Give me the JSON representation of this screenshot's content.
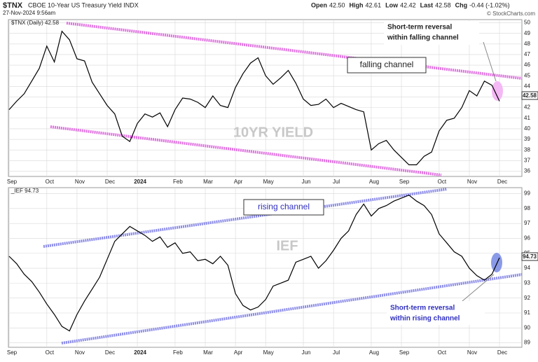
{
  "header": {
    "symbol": "$TNX",
    "name": "CBOE 10-Year US Treasury Yield INDX",
    "date": "27-Nov-2024 9:56am",
    "quote": [
      [
        "Open",
        "42.50"
      ],
      [
        "High",
        "42.61"
      ],
      [
        "Low",
        "42.42"
      ],
      [
        "Last",
        "42.58"
      ],
      [
        "Chg",
        "-0.44 (-1.02%)"
      ]
    ],
    "credit": "© StockCharts.com"
  },
  "chart_data": [
    {
      "type": "line",
      "watermark": "10YR YIELD",
      "last_label": "42.58",
      "channel_label": "falling channel",
      "reversal_label": [
        "Short-term reversal",
        "within falling channel"
      ],
      "categories": [
        "Sep",
        null,
        null,
        null,
        null,
        "Oct",
        null,
        null,
        null,
        "Nov",
        null,
        null,
        null,
        "Dec",
        null,
        null,
        null,
        "2024",
        null,
        null,
        null,
        null,
        "Feb",
        null,
        null,
        null,
        "Mar",
        null,
        null,
        null,
        "Apr",
        null,
        null,
        null,
        "May",
        null,
        null,
        null,
        null,
        "Jun",
        null,
        null,
        null,
        "Jul",
        null,
        null,
        null,
        null,
        "Aug",
        null,
        null,
        null,
        "Sep",
        null,
        null,
        null,
        null,
        "Oct",
        null,
        null,
        null,
        "Nov",
        null,
        null,
        null,
        "Dec"
      ],
      "series": [
        {
          "name": "$TNX (Daily) 42.58",
          "color": "#000000",
          "values": [
            41.8,
            42.6,
            43.3,
            44.5,
            45.7,
            47.8,
            46.3,
            49.2,
            48.4,
            46.6,
            46.4,
            44.4,
            43.3,
            42.2,
            41.4,
            39.3,
            38.8,
            40.5,
            41.4,
            41.1,
            41.5,
            40.2,
            41.8,
            42.9,
            42.8,
            42.5,
            42.0,
            43.1,
            42.2,
            42.0,
            43.9,
            45.2,
            46.2,
            46.7,
            45.0,
            44.2,
            44.8,
            45.5,
            44.3,
            42.8,
            42.2,
            42.3,
            42.8,
            42.0,
            42.4,
            42.1,
            41.8,
            41.6,
            38.0,
            38.6,
            38.9,
            38.0,
            37.3,
            36.6,
            36.6,
            37.4,
            37.8,
            39.8,
            40.8,
            41.0,
            42.0,
            43.6,
            43.1,
            44.5,
            44.1,
            42.6
          ]
        }
      ],
      "ylim": [
        35.5,
        50.3
      ],
      "yticks": [
        36,
        37,
        38,
        39,
        40,
        41,
        42,
        43,
        44,
        45,
        46,
        47,
        48,
        49,
        50
      ],
      "grid": true
    },
    {
      "type": "line",
      "watermark": "IEF",
      "last_label": "94.73",
      "channel_label": "rising channel",
      "reversal_label": [
        "Short-term reversal",
        "within rising channel"
      ],
      "categories": [
        "Sep",
        null,
        null,
        null,
        null,
        "Oct",
        null,
        null,
        null,
        "Nov",
        null,
        null,
        null,
        "Dec",
        null,
        null,
        null,
        "2024",
        null,
        null,
        null,
        null,
        "Feb",
        null,
        null,
        null,
        "Mar",
        null,
        null,
        null,
        "Apr",
        null,
        null,
        null,
        "May",
        null,
        null,
        null,
        null,
        "Jun",
        null,
        null,
        null,
        "Jul",
        null,
        null,
        null,
        null,
        "Aug",
        null,
        null,
        null,
        "Sep",
        null,
        null,
        null,
        null,
        "Oct",
        null,
        null,
        null,
        "Nov",
        null,
        null,
        null,
        "Dec"
      ],
      "series": [
        {
          "name": "_IEF 94.73",
          "color": "#000000",
          "values": [
            94.8,
            94.3,
            93.6,
            93.1,
            92.4,
            91.6,
            90.9,
            90.1,
            89.8,
            90.9,
            91.8,
            92.6,
            93.4,
            94.6,
            95.8,
            96.3,
            96.8,
            96.5,
            96.2,
            95.8,
            96.1,
            95.4,
            95.7,
            95.0,
            95.1,
            94.5,
            94.6,
            94.3,
            94.8,
            94.2,
            92.3,
            91.5,
            91.2,
            91.4,
            91.9,
            92.8,
            93.0,
            93.2,
            94.4,
            94.6,
            94.8,
            94.0,
            94.5,
            95.2,
            96.0,
            96.5,
            97.6,
            98.3,
            97.5,
            98.0,
            98.2,
            98.5,
            98.7,
            98.9,
            98.5,
            98.2,
            97.6,
            96.3,
            95.7,
            95.1,
            94.8,
            94.0,
            93.5,
            93.2,
            93.6,
            94.7
          ]
        }
      ],
      "ylim": [
        88.7,
        99.4
      ],
      "yticks": [
        89,
        90,
        91,
        92,
        93,
        94,
        95,
        96,
        97,
        98,
        99
      ],
      "grid": true
    }
  ]
}
